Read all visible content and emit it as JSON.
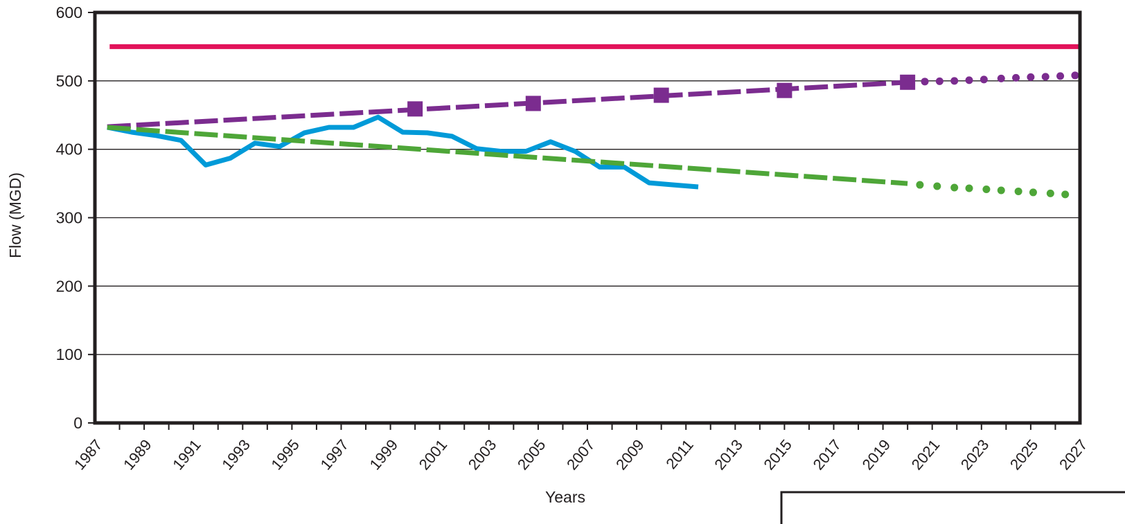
{
  "chart_data": {
    "type": "line",
    "title": "",
    "xlabel": "Years",
    "ylabel": "Flow (MGD)",
    "xlim": [
      1987,
      2027
    ],
    "ylim": [
      0,
      600
    ],
    "y_ticks": [
      0,
      100,
      200,
      300,
      400,
      500,
      600
    ],
    "x_ticks": [
      1987,
      1989,
      1991,
      1993,
      1995,
      1997,
      1999,
      2001,
      2003,
      2005,
      2007,
      2009,
      2011,
      2013,
      2015,
      2017,
      2019,
      2021,
      2023,
      2025,
      2027
    ],
    "grid": "horizontal",
    "series": [
      {
        "color": "#e2125a",
        "style": "solid",
        "points": [
          [
            1987.6,
            550
          ],
          [
            2027,
            550
          ]
        ]
      },
      {
        "color": "#009ad8",
        "style": "solid",
        "points": [
          [
            1987.5,
            432
          ],
          [
            1988.5,
            425
          ],
          [
            1989.5,
            420
          ],
          [
            1990.5,
            413
          ],
          [
            1991.5,
            377
          ],
          [
            1992.5,
            387
          ],
          [
            1993.5,
            409
          ],
          [
            1994.5,
            404
          ],
          [
            1995.5,
            424
          ],
          [
            1996.5,
            432
          ],
          [
            1997.5,
            432
          ],
          [
            1998.5,
            447
          ],
          [
            1999.5,
            425
          ],
          [
            2000.5,
            424
          ],
          [
            2001.5,
            419
          ],
          [
            2002.5,
            401
          ],
          [
            2003.5,
            397
          ],
          [
            2004.5,
            397
          ],
          [
            2005.5,
            411
          ],
          [
            2006.5,
            397
          ],
          [
            2007.5,
            374
          ],
          [
            2008.5,
            374
          ],
          [
            2009.5,
            351
          ],
          [
            2010.5,
            348
          ],
          [
            2011.5,
            345
          ]
        ]
      },
      {
        "color": "#7b2c8f",
        "style": "dashed",
        "points": [
          [
            1987.5,
            433
          ],
          [
            2020,
            498
          ]
        ],
        "markers": [
          [
            2000,
            459
          ],
          [
            2004.8,
            467
          ],
          [
            2010,
            479
          ],
          [
            2015,
            486
          ],
          [
            2020,
            498
          ]
        ]
      },
      {
        "color": "#7b2c8f",
        "style": "dotted",
        "points": [
          [
            2020.7,
            499
          ],
          [
            2021.3,
            499.5
          ],
          [
            2021.9,
            500
          ],
          [
            2022.5,
            501
          ],
          [
            2023.1,
            502
          ],
          [
            2023.8,
            503.5
          ],
          [
            2024.4,
            504.5
          ],
          [
            2025,
            505.5
          ],
          [
            2025.6,
            506
          ],
          [
            2026.2,
            507
          ],
          [
            2026.8,
            508
          ]
        ]
      },
      {
        "color": "#4ea638",
        "style": "dashed",
        "points": [
          [
            1987.5,
            432
          ],
          [
            2020,
            350
          ]
        ]
      },
      {
        "color": "#4ea638",
        "style": "dotted",
        "points": [
          [
            2020.5,
            348
          ],
          [
            2021.2,
            346
          ],
          [
            2021.9,
            344
          ],
          [
            2022.5,
            343
          ],
          [
            2023.2,
            341.5
          ],
          [
            2023.8,
            340
          ],
          [
            2024.5,
            338.5
          ],
          [
            2025.1,
            337
          ],
          [
            2025.8,
            335.5
          ],
          [
            2026.4,
            334
          ]
        ]
      }
    ]
  }
}
